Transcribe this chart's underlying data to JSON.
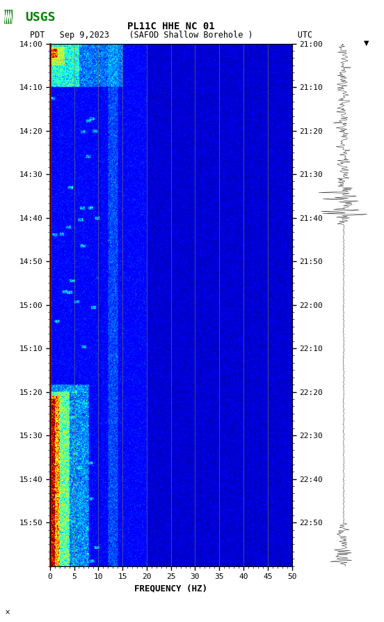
{
  "title_line1": "PL11C HHE NC 01",
  "title_line2": "(SAFOD Shallow Borehole )",
  "date_str": "Sep 9,2023",
  "timezone_left": "PDT",
  "timezone_right": "UTC",
  "time_labels_left": [
    "14:00",
    "14:10",
    "14:20",
    "14:30",
    "14:40",
    "14:50",
    "15:00",
    "15:10",
    "15:20",
    "15:30",
    "15:40",
    "15:50"
  ],
  "time_labels_right": [
    "21:00",
    "21:10",
    "21:20",
    "21:30",
    "21:40",
    "21:50",
    "22:00",
    "22:10",
    "22:20",
    "22:30",
    "22:40",
    "22:50"
  ],
  "freq_ticks": [
    0,
    5,
    10,
    15,
    20,
    25,
    30,
    35,
    40,
    45,
    50
  ],
  "freq_label": "FREQUENCY (HZ)",
  "freq_min": 0,
  "freq_max": 50,
  "n_time": 720,
  "n_freq": 500,
  "spectrogram_cmap": "jet",
  "fig_bg": "#ffffff",
  "logo_color": "#008000",
  "grid_color": "#808040",
  "grid_freq_positions": [
    5,
    10,
    15,
    20,
    25,
    30,
    35,
    40,
    45
  ]
}
